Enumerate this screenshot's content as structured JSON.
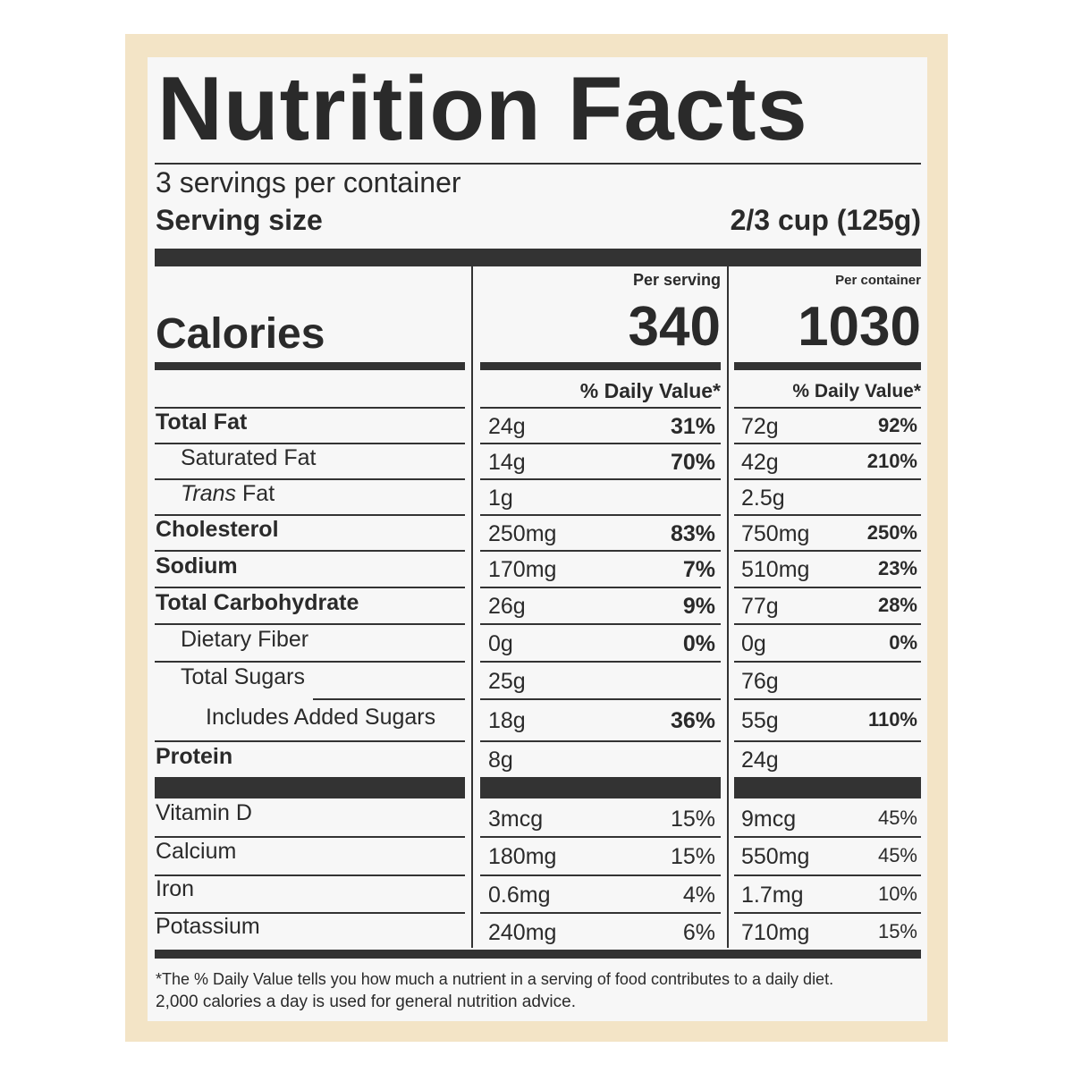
{
  "title": "Nutrition Facts",
  "servings": "3 servings per container",
  "serving_size": {
    "label": "Serving size",
    "value": "2/3 cup (125g)"
  },
  "calories": {
    "label": "Calories",
    "per_serving_header": "Per serving",
    "per_serving": 340,
    "per_container_header": "Per container",
    "per_container": 1030
  },
  "dv_header": {
    "serving": "% Daily Value*",
    "container": "% Daily Value*"
  },
  "rows": [
    {
      "name": "Total Fat",
      "bold": true,
      "indent": 0,
      "serving": {
        "amount": "24g",
        "dv": "31%"
      },
      "container": {
        "amount": "72g",
        "dv": "92%"
      }
    },
    {
      "name": "Saturated Fat",
      "bold": false,
      "indent": 1,
      "serving": {
        "amount": "14g",
        "dv": "70%"
      },
      "container": {
        "amount": "42g",
        "dv": "210%"
      }
    },
    {
      "name_italic": "Trans",
      "name": "Fat",
      "bold": false,
      "indent": 1,
      "serving": {
        "amount": "1g"
      },
      "container": {
        "amount": "2.5g"
      }
    },
    {
      "name": "Cholesterol",
      "bold": true,
      "indent": 0,
      "serving": {
        "amount": "250mg",
        "dv": "83%"
      },
      "container": {
        "amount": "750mg",
        "dv": "250%"
      }
    },
    {
      "name": "Sodium",
      "bold": true,
      "indent": 0,
      "serving": {
        "amount": "170mg",
        "dv": "7%"
      },
      "container": {
        "amount": "510mg",
        "dv": "23%"
      }
    },
    {
      "name": "Total Carbohydrate",
      "bold": true,
      "indent": 0,
      "serving": {
        "amount": "26g",
        "dv": "9%"
      },
      "container": {
        "amount": "77g",
        "dv": "28%"
      }
    },
    {
      "name": "Dietary Fiber",
      "bold": false,
      "indent": 1,
      "serving": {
        "amount": "0g",
        "dv": "0%"
      },
      "container": {
        "amount": "0g",
        "dv": "0%"
      }
    },
    {
      "name": "Total Sugars",
      "bold": false,
      "indent": 1,
      "serving": {
        "amount": "25g"
      },
      "container": {
        "amount": "76g"
      }
    },
    {
      "name": "Includes Added Sugars",
      "bold": false,
      "indent": 2,
      "serving": {
        "amount": "18g",
        "dv": "36%"
      },
      "container": {
        "amount": "55g",
        "dv": "110%"
      }
    },
    {
      "name": "Protein",
      "bold": true,
      "indent": 0,
      "serving": {
        "amount": "8g"
      },
      "container": {
        "amount": "24g"
      }
    }
  ],
  "vitamins": [
    {
      "name": "Vitamin D",
      "serving": {
        "amount": "3mcg",
        "dv": "15%"
      },
      "container": {
        "amount": "9mcg",
        "dv": "45%"
      }
    },
    {
      "name": "Calcium",
      "serving": {
        "amount": "180mg",
        "dv": "15%"
      },
      "container": {
        "amount": "550mg",
        "dv": "45%"
      }
    },
    {
      "name": "Iron",
      "serving": {
        "amount": "0.6mg",
        "dv": "4%"
      },
      "container": {
        "amount": "1.7mg",
        "dv": "10%"
      }
    },
    {
      "name": "Potassium",
      "serving": {
        "amount": "240mg",
        "dv": "6%"
      },
      "container": {
        "amount": "710mg",
        "dv": "15%"
      }
    }
  ],
  "footnote": [
    "*The % Daily Value tells you how much a nutrient in a serving of food contributes to a daily diet.",
    "2,000 calories a day is used for general nutrition advice."
  ]
}
